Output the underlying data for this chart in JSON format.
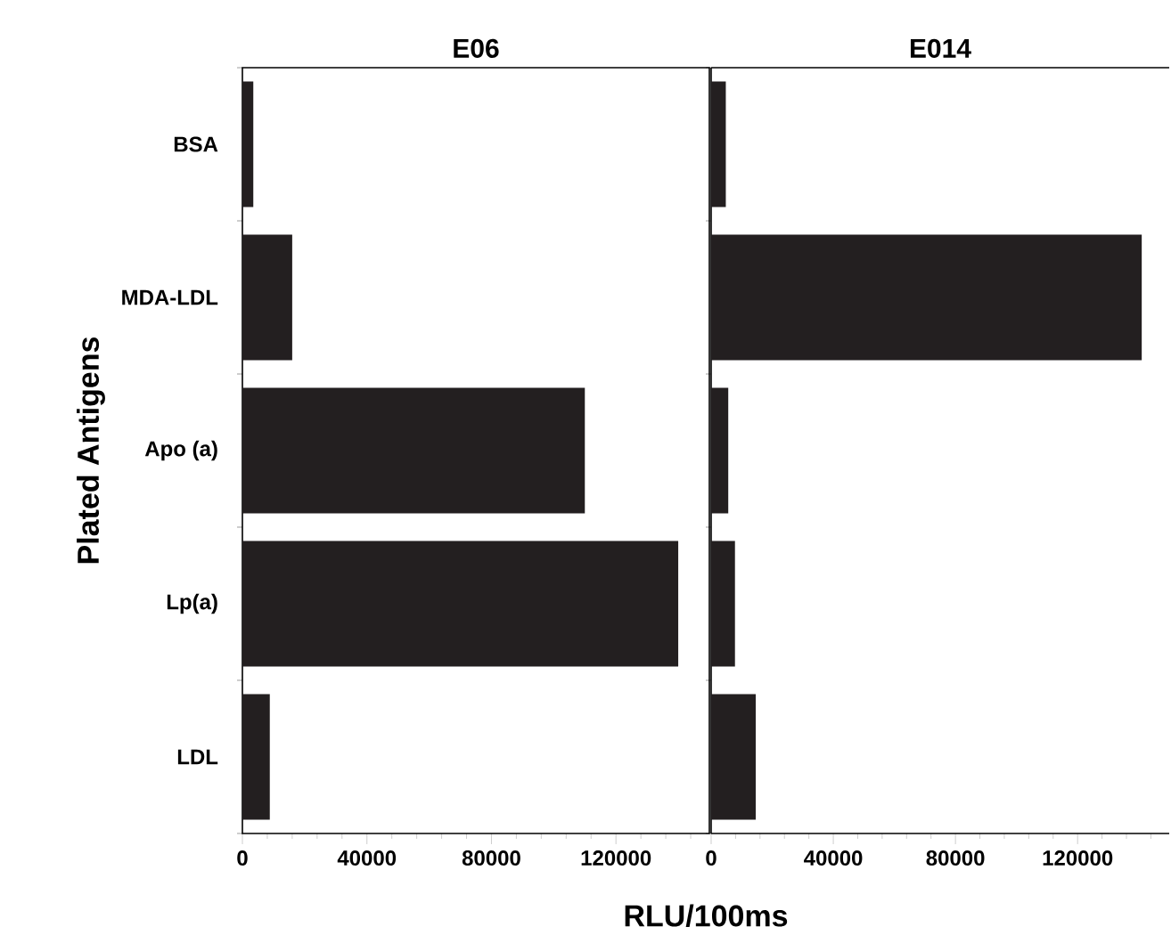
{
  "chart_data": [
    {
      "type": "bar",
      "orientation": "horizontal",
      "title": "E06",
      "xlabel": "RLU/100ms",
      "ylabel": "Plated Antigens",
      "categories": [
        "BSA",
        "MDA-LDL",
        "Apo (a)",
        "Lp(a)",
        "LDL"
      ],
      "values": [
        3500,
        16000,
        110000,
        140000,
        8800
      ],
      "color": "#231f20",
      "xlim": [
        0,
        150000
      ],
      "xticks": [
        0,
        {
          "value": 8000,
          "label": null
        },
        {
          "value": 16000,
          "label": null
        },
        {
          "value": 24000,
          "label": null
        },
        {
          "value": 32000,
          "label": null
        },
        40000,
        {
          "value": 48000,
          "label": null
        },
        {
          "value": 56000,
          "label": null
        },
        {
          "value": 64000,
          "label": null
        },
        {
          "value": 72000,
          "label": null
        },
        80000,
        {
          "value": 88000,
          "label": null
        },
        {
          "value": 96000,
          "label": null
        },
        {
          "value": 104000,
          "label": null
        },
        {
          "value": 112000,
          "label": null
        },
        120000,
        {
          "value": 128000,
          "label": null
        },
        {
          "value": 136000,
          "label": null
        },
        {
          "value": 144000,
          "label": null
        }
      ]
    },
    {
      "type": "bar",
      "orientation": "horizontal",
      "title": "E014",
      "categories": [
        null,
        null,
        null,
        null,
        null
      ],
      "values": [
        4800,
        141000,
        5600,
        7800,
        14600
      ],
      "color": "#231f20",
      "xlim": [
        0,
        150000
      ],
      "tick_labels": "x",
      "xticks": [
        0,
        {
          "value": 8000,
          "label": null
        },
        {
          "value": 16000,
          "label": null
        },
        {
          "value": 24000,
          "label": null
        },
        {
          "value": 32000,
          "label": null
        },
        40000,
        {
          "value": 48000,
          "label": null
        },
        {
          "value": 56000,
          "label": null
        },
        {
          "value": 64000,
          "label": null
        },
        {
          "value": 72000,
          "label": null
        },
        80000,
        {
          "value": 88000,
          "label": null
        },
        {
          "value": 96000,
          "label": null
        },
        {
          "value": 104000,
          "label": null
        },
        {
          "value": 112000,
          "label": null
        },
        120000,
        {
          "value": 128000,
          "label": null
        },
        {
          "value": 136000,
          "label": null
        },
        {
          "value": 144000,
          "label": null
        }
      ]
    }
  ]
}
